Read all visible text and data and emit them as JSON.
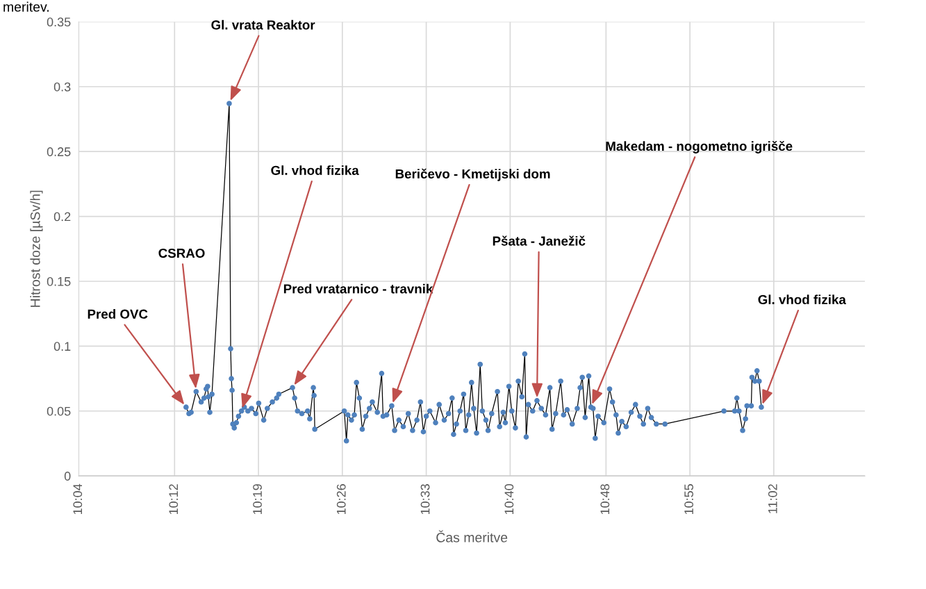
{
  "chart_data": {
    "type": "line",
    "xlabel": "Čas meritve",
    "ylabel": "Hitrost doze [µSv/h]",
    "xlim": [
      10.0667,
      11.16
    ],
    "xticks": [
      {
        "value": 10.0667,
        "label": "10:04"
      },
      {
        "value": 10.2,
        "label": "10:12"
      },
      {
        "value": 10.3167,
        "label": "10:19"
      },
      {
        "value": 10.4333,
        "label": "10:26"
      },
      {
        "value": 10.55,
        "label": "10:33"
      },
      {
        "value": 10.6667,
        "label": "10:40"
      },
      {
        "value": 10.8,
        "label": "10:48"
      },
      {
        "value": 10.9167,
        "label": "10:55"
      },
      {
        "value": 11.0333,
        "label": "11:02"
      }
    ],
    "ylim": [
      0,
      0.35
    ],
    "yticks": [
      0,
      0.05,
      0.1,
      0.15,
      0.2,
      0.25,
      0.3,
      0.35
    ],
    "grid": true,
    "marker": "circle",
    "line_style": "solid",
    "x": [
      10.216,
      10.22,
      10.223,
      10.23,
      10.237,
      10.241,
      10.244,
      10.246,
      10.247,
      10.249,
      10.252,
      10.276,
      10.278,
      10.279,
      10.28,
      10.281,
      10.283,
      10.286,
      10.289,
      10.293,
      10.297,
      10.302,
      10.307,
      10.313,
      10.317,
      10.324,
      10.329,
      10.336,
      10.342,
      10.345,
      10.364,
      10.367,
      10.371,
      10.377,
      10.385,
      10.388,
      10.393,
      10.394,
      10.395,
      10.436,
      10.439,
      10.441,
      10.446,
      10.45,
      10.453,
      10.457,
      10.461,
      10.466,
      10.471,
      10.475,
      10.482,
      10.488,
      10.49,
      10.495,
      10.502,
      10.506,
      10.512,
      10.518,
      10.525,
      10.531,
      10.537,
      10.542,
      10.546,
      10.55,
      10.555,
      10.563,
      10.568,
      10.575,
      10.581,
      10.586,
      10.588,
      10.592,
      10.597,
      10.602,
      10.605,
      10.609,
      10.613,
      10.616,
      10.62,
      10.625,
      10.628,
      10.633,
      10.636,
      10.641,
      10.649,
      10.652,
      10.657,
      10.66,
      10.665,
      10.669,
      10.674,
      10.678,
      10.683,
      10.687,
      10.689,
      10.692,
      10.698,
      10.704,
      10.71,
      10.716,
      10.722,
      10.725,
      10.73,
      10.737,
      10.741,
      10.746,
      10.753,
      10.76,
      10.764,
      10.767,
      10.771,
      10.776,
      10.779,
      10.782,
      10.785,
      10.789,
      10.797,
      10.805,
      10.809,
      10.814,
      10.817,
      10.822,
      10.828,
      10.835,
      10.841,
      10.847,
      10.852,
      10.858,
      10.863,
      10.87,
      10.882,
      10.964,
      10.979,
      10.982,
      10.985,
      10.99,
      10.994,
      10.996,
      11.002,
      11.003,
      11.007,
      11.01,
      11.013,
      11.016
    ],
    "series": [
      {
        "color": "#4f81bd",
        "values": [
          0.053,
          0.048,
          0.049,
          0.065,
          0.057,
          0.06,
          0.067,
          0.069,
          0.061,
          0.049,
          0.063,
          0.287,
          0.098,
          0.075,
          0.066,
          0.04,
          0.037,
          0.041,
          0.046,
          0.05,
          0.053,
          0.05,
          0.052,
          0.048,
          0.056,
          0.043,
          0.052,
          0.057,
          0.06,
          0.063,
          0.068,
          0.06,
          0.05,
          0.048,
          0.05,
          0.044,
          0.068,
          0.062,
          0.036,
          0.05,
          0.027,
          0.047,
          0.043,
          0.047,
          0.072,
          0.06,
          0.036,
          0.046,
          0.052,
          0.057,
          0.049,
          0.079,
          0.046,
          0.047,
          0.054,
          0.035,
          0.043,
          0.038,
          0.048,
          0.035,
          0.043,
          0.057,
          0.034,
          0.046,
          0.05,
          0.041,
          0.055,
          0.043,
          0.048,
          0.06,
          0.032,
          0.04,
          0.05,
          0.063,
          0.035,
          0.047,
          0.072,
          0.052,
          0.033,
          0.086,
          0.05,
          0.043,
          0.035,
          0.048,
          0.065,
          0.038,
          0.049,
          0.041,
          0.069,
          0.05,
          0.037,
          0.073,
          0.061,
          0.094,
          0.03,
          0.055,
          0.05,
          0.058,
          0.052,
          0.047,
          0.068,
          0.036,
          0.048,
          0.073,
          0.047,
          0.051,
          0.04,
          0.052,
          0.068,
          0.076,
          0.045,
          0.077,
          0.053,
          0.052,
          0.029,
          0.046,
          0.041,
          0.067,
          0.057,
          0.047,
          0.033,
          0.042,
          0.038,
          0.049,
          0.055,
          0.046,
          0.04,
          0.052,
          0.045,
          0.04,
          0.04,
          0.05,
          0.05,
          0.06,
          0.05,
          0.035,
          0.044,
          0.054,
          0.054,
          0.076,
          0.073,
          0.081,
          0.073,
          0.053
        ]
      }
    ],
    "annotations": [
      "meritev.",
      {
        "text": "Pred OVC",
        "x": 10.216,
        "y": 0.053
      },
      {
        "text": "CSRAO",
        "x": 10.23,
        "y": 0.065
      },
      {
        "text": "Gl. vrata Reaktor",
        "x": 10.276,
        "y": 0.287
      },
      {
        "text": "Gl. vhod fizika",
        "x": 10.293,
        "y": 0.05
      },
      {
        "text": "Pred vratarnico - travnik",
        "x": 10.364,
        "y": 0.068
      },
      {
        "text": "Beričevo - Kmetijski dom",
        "x": 10.502,
        "y": 0.054
      },
      {
        "text": "Pšata - Janežič",
        "x": 10.704,
        "y": 0.058
      },
      {
        "text": "Makedam - nogometno igrišče",
        "x": 10.779,
        "y": 0.053
      },
      {
        "text": "Gl. vhod fizika",
        "x": 11.016,
        "y": 0.053
      }
    ]
  }
}
